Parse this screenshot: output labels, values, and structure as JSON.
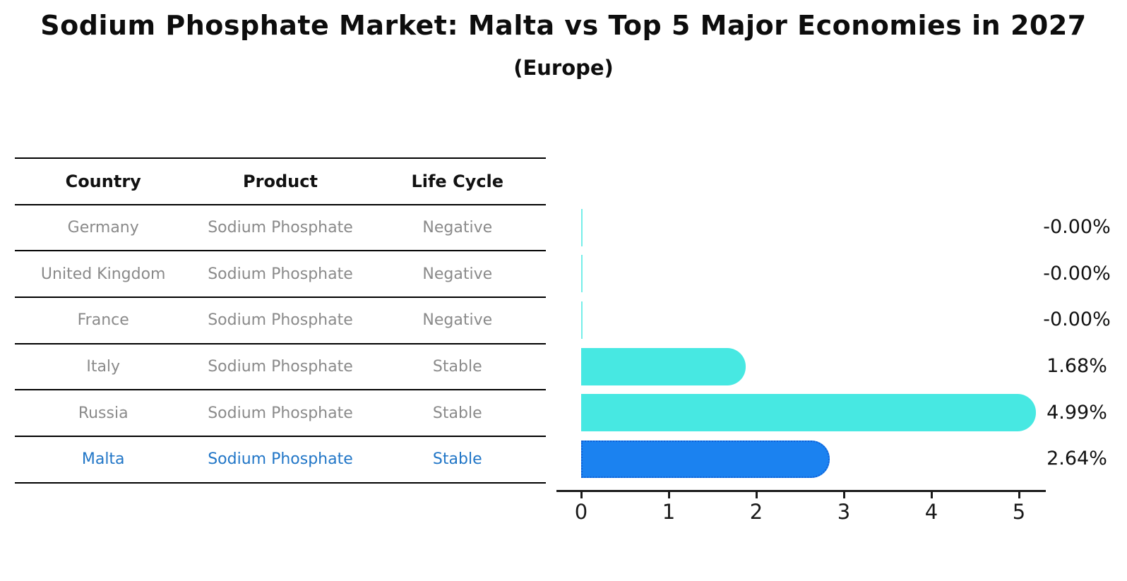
{
  "title": "Sodium Phosphate Market: Malta vs Top 5 Major Economies in 2027",
  "subtitle": "(Europe)",
  "table": {
    "headers": [
      "Country",
      "Product",
      "Life Cycle"
    ],
    "rows": [
      {
        "country": "Germany",
        "product": "Sodium Phosphate",
        "life_cycle": "Negative",
        "highlight": false
      },
      {
        "country": "United Kingdom",
        "product": "Sodium Phosphate",
        "life_cycle": "Negative",
        "highlight": false
      },
      {
        "country": "France",
        "product": "Sodium Phosphate",
        "life_cycle": "Negative",
        "highlight": false
      },
      {
        "country": "Italy",
        "product": "Sodium Phosphate",
        "life_cycle": "Stable",
        "highlight": false
      },
      {
        "country": "Russia",
        "product": "Sodium Phosphate",
        "life_cycle": "Stable",
        "highlight": false
      },
      {
        "country": "Malta",
        "product": "Sodium Phosphate",
        "life_cycle": "Stable",
        "highlight": true
      }
    ]
  },
  "chart_data": {
    "type": "bar",
    "orientation": "horizontal",
    "title": "Sodium Phosphate Market: Malta vs Top 5 Major Economies in 2027 (Europe)",
    "categories": [
      "Germany",
      "United Kingdom",
      "France",
      "Italy",
      "Russia",
      "Malta"
    ],
    "values": [
      -0.0,
      -0.0,
      -0.0,
      1.68,
      4.99,
      2.64
    ],
    "value_labels": [
      "-0.00%",
      "-0.00%",
      "-0.00%",
      "1.68%",
      "4.99%",
      "2.64%"
    ],
    "highlight_index": 5,
    "x_ticks": [
      "0",
      "1",
      "2",
      "3",
      "4",
      "5"
    ],
    "xlim": [
      -0.3,
      5.3
    ],
    "grid": false,
    "legend": "none",
    "xlabel": "",
    "ylabel": ""
  },
  "colors": {
    "bar_default": "#47e8e2",
    "bar_highlight_fill": "#1b82f0",
    "bar_highlight_border": "#0d5fd6",
    "highlight_text": "#2176c7",
    "table_text": "#8a8a8a",
    "axis": "#1a1a1a",
    "label_text": "#111111"
  }
}
